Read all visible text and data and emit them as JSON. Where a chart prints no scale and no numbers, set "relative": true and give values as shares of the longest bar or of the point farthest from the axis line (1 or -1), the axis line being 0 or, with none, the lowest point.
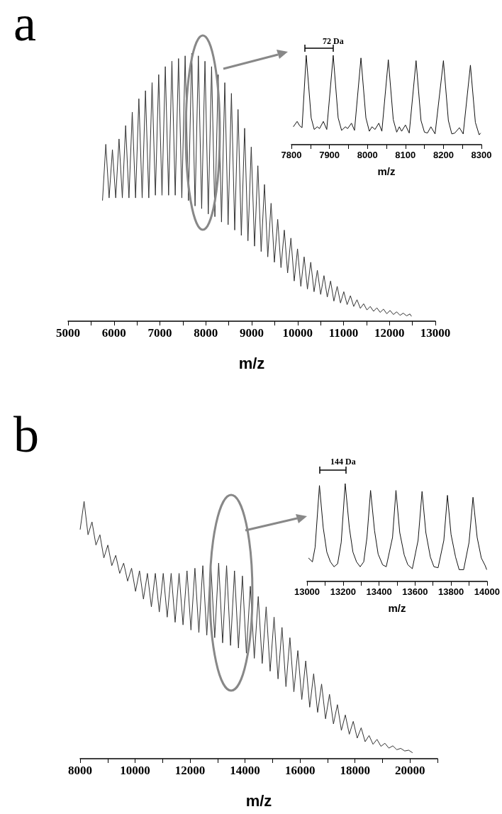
{
  "chart_data": [
    {
      "type": "line",
      "title": "a",
      "xlabel": "m/z",
      "relative": true,
      "marker": "none",
      "xlim": [
        5000,
        13000
      ],
      "xticks": [
        5000,
        {
          "value": 5500,
          "label": null
        },
        6000,
        {
          "value": 6500,
          "label": null
        },
        7000,
        {
          "value": 7500,
          "label": null
        },
        8000,
        {
          "value": 8500,
          "label": null
        },
        9000,
        {
          "value": 9500,
          "label": null
        },
        10000,
        {
          "value": 10500,
          "label": null
        },
        11000,
        {
          "value": 11500,
          "label": null
        },
        12000,
        {
          "value": 12500,
          "label": null
        },
        13000
      ],
      "series": [
        {
          "color": "#333333",
          "x": [
            5750,
            5822,
            5894,
            5966,
            6038,
            6110,
            6182,
            6254,
            6326,
            6398,
            6470,
            6542,
            6614,
            6686,
            6758,
            6830,
            6902,
            6974,
            7046,
            7118,
            7190,
            7262,
            7334,
            7406,
            7478,
            7550,
            7622,
            7694,
            7766,
            7838,
            7910,
            7982,
            8054,
            8126,
            8198,
            8270,
            8342,
            8414,
            8486,
            8558,
            8630,
            8702,
            8774,
            8846,
            8918,
            8990,
            9062,
            9134,
            9206,
            9278,
            9350,
            9422,
            9494,
            9566,
            9638,
            9710,
            9782,
            9854,
            9926,
            9998,
            10070,
            10142,
            10214,
            10286,
            10358,
            10430,
            10502,
            10574,
            10646,
            10718,
            10790,
            10862,
            10934,
            11006,
            11078,
            11150,
            11222,
            11294,
            11366,
            11438,
            11510,
            11582,
            11654,
            11726,
            11798,
            11870,
            11942,
            12014,
            12086,
            12158,
            12230,
            12302,
            12374,
            12446,
            12480
          ],
          "values": [
            0.45,
            0.66,
            0.46,
            0.64,
            0.46,
            0.68,
            0.46,
            0.73,
            0.46,
            0.78,
            0.46,
            0.83,
            0.46,
            0.86,
            0.46,
            0.89,
            0.47,
            0.92,
            0.47,
            0.95,
            0.47,
            0.97,
            0.47,
            0.98,
            0.46,
            0.99,
            0.45,
            1.0,
            0.43,
            0.99,
            0.42,
            0.97,
            0.4,
            0.95,
            0.39,
            0.92,
            0.37,
            0.89,
            0.36,
            0.85,
            0.34,
            0.79,
            0.32,
            0.72,
            0.3,
            0.65,
            0.28,
            0.58,
            0.26,
            0.51,
            0.24,
            0.44,
            0.22,
            0.38,
            0.2,
            0.34,
            0.18,
            0.31,
            0.15,
            0.27,
            0.13,
            0.24,
            0.12,
            0.22,
            0.11,
            0.19,
            0.1,
            0.17,
            0.09,
            0.15,
            0.075,
            0.13,
            0.068,
            0.11,
            0.062,
            0.095,
            0.055,
            0.08,
            0.048,
            0.065,
            0.042,
            0.055,
            0.037,
            0.05,
            0.033,
            0.045,
            0.028,
            0.04,
            0.025,
            0.035,
            0.022,
            0.03,
            0.02,
            0.027,
            0.018
          ]
        }
      ]
    },
    {
      "type": "line",
      "xlabel": "m/z",
      "relative": true,
      "marker": "none",
      "annotations": [
        "72 Da"
      ],
      "xlim": [
        7800,
        8300
      ],
      "xticks": [
        7800,
        {
          "value": 7850,
          "label": null
        },
        7900,
        {
          "value": 7950,
          "label": null
        },
        8000,
        {
          "value": 8050,
          "label": null
        },
        8100,
        {
          "value": 8150,
          "label": null
        },
        8200,
        {
          "value": 8250,
          "label": null
        },
        8300
      ],
      "series": [
        {
          "color": "#111111",
          "x": [
            7805,
            7815,
            7822,
            7828,
            7839,
            7852,
            7860,
            7868,
            7874,
            7884,
            7893,
            7910,
            7923,
            7932,
            7942,
            7948,
            7958,
            7966,
            7983,
            7996,
            8005,
            8012,
            8020,
            8030,
            8038,
            8055,
            8068,
            8077,
            8084,
            8090,
            8100,
            8110,
            8128,
            8141,
            8150,
            8158,
            8167,
            8178,
            8200,
            8213,
            8222,
            8230,
            8242,
            8252,
            8271,
            8284,
            8294,
            8298
          ],
          "values": [
            0.2,
            0.26,
            0.21,
            0.19,
            1.0,
            0.3,
            0.17,
            0.2,
            0.18,
            0.26,
            0.17,
            1.0,
            0.3,
            0.16,
            0.2,
            0.18,
            0.24,
            0.16,
            0.97,
            0.3,
            0.15,
            0.2,
            0.17,
            0.24,
            0.15,
            0.95,
            0.28,
            0.14,
            0.2,
            0.15,
            0.22,
            0.13,
            0.94,
            0.27,
            0.14,
            0.13,
            0.2,
            0.12,
            0.94,
            0.27,
            0.12,
            0.13,
            0.19,
            0.12,
            0.89,
            0.25,
            0.11,
            0.13
          ]
        }
      ]
    },
    {
      "type": "line",
      "title": "b",
      "xlabel": "m/z",
      "relative": true,
      "marker": "none",
      "xlim": [
        8000,
        21000
      ],
      "xticks": [
        8000,
        {
          "value": 9000,
          "label": null
        },
        10000,
        {
          "value": 11000,
          "label": null
        },
        12000,
        {
          "value": 13000,
          "label": null
        },
        14000,
        {
          "value": 15000,
          "label": null
        },
        16000,
        {
          "value": 17000,
          "label": null
        },
        18000,
        {
          "value": 19000,
          "label": null
        },
        20000,
        {
          "value": 21000,
          "label": null
        }
      ],
      "series": [
        {
          "color": "#333333",
          "x": [
            8000,
            8144,
            8288,
            8432,
            8576,
            8720,
            8864,
            9008,
            9152,
            9296,
            9440,
            9584,
            9728,
            9872,
            10016,
            10160,
            10304,
            10448,
            10592,
            10736,
            10880,
            11024,
            11168,
            11312,
            11456,
            11600,
            11744,
            11888,
            12032,
            12176,
            12320,
            12464,
            12608,
            12752,
            12896,
            13040,
            13184,
            13328,
            13472,
            13616,
            13760,
            13904,
            14048,
            14192,
            14336,
            14480,
            14624,
            14768,
            14912,
            15056,
            15200,
            15344,
            15488,
            15632,
            15776,
            15920,
            16064,
            16208,
            16352,
            16496,
            16640,
            16784,
            16928,
            17072,
            17216,
            17360,
            17504,
            17648,
            17792,
            17936,
            18080,
            18224,
            18368,
            18512,
            18656,
            18800,
            18944,
            19088,
            19232,
            19376,
            19520,
            19664,
            19808,
            19952,
            20096
          ],
          "values": [
            0.89,
            1.0,
            0.87,
            0.92,
            0.83,
            0.87,
            0.78,
            0.83,
            0.75,
            0.79,
            0.72,
            0.76,
            0.69,
            0.74,
            0.65,
            0.73,
            0.62,
            0.72,
            0.59,
            0.72,
            0.57,
            0.72,
            0.55,
            0.72,
            0.53,
            0.72,
            0.52,
            0.73,
            0.5,
            0.74,
            0.49,
            0.75,
            0.48,
            0.76,
            0.47,
            0.76,
            0.45,
            0.75,
            0.44,
            0.73,
            0.43,
            0.71,
            0.41,
            0.67,
            0.39,
            0.63,
            0.37,
            0.59,
            0.34,
            0.55,
            0.31,
            0.51,
            0.28,
            0.47,
            0.26,
            0.42,
            0.23,
            0.38,
            0.2,
            0.33,
            0.18,
            0.29,
            0.155,
            0.25,
            0.135,
            0.21,
            0.11,
            0.17,
            0.095,
            0.145,
            0.08,
            0.12,
            0.066,
            0.09,
            0.056,
            0.075,
            0.048,
            0.06,
            0.041,
            0.05,
            0.035,
            0.04,
            0.03,
            0.033,
            0.023
          ]
        }
      ]
    },
    {
      "type": "line",
      "xlabel": "m/z",
      "relative": true,
      "marker": "none",
      "annotations": [
        "144 Da"
      ],
      "xlim": [
        13000,
        14000
      ],
      "xticks": [
        13000,
        {
          "value": 13100,
          "label": null
        },
        13200,
        {
          "value": 13300,
          "label": null
        },
        13400,
        {
          "value": 13500,
          "label": null
        },
        13600,
        {
          "value": 13700,
          "label": null
        },
        13800,
        {
          "value": 13900,
          "label": null
        },
        14000
      ],
      "series": [
        {
          "color": "#111111",
          "x": [
            13008,
            13030,
            13045,
            13069,
            13090,
            13110,
            13130,
            13150,
            13170,
            13190,
            13212,
            13235,
            13255,
            13275,
            13295,
            13315,
            13333,
            13353,
            13375,
            13395,
            13420,
            13440,
            13475,
            13494,
            13515,
            13540,
            13560,
            13585,
            13617,
            13639,
            13660,
            13685,
            13705,
            13728,
            13760,
            13780,
            13800,
            13825,
            13845,
            13870,
            13900,
            13922,
            13945,
            13968,
            13990,
            13998
          ],
          "values": [
            0.24,
            0.2,
            0.35,
            0.98,
            0.55,
            0.3,
            0.2,
            0.15,
            0.18,
            0.4,
            1.0,
            0.55,
            0.3,
            0.2,
            0.15,
            0.2,
            0.45,
            0.93,
            0.52,
            0.28,
            0.17,
            0.15,
            0.45,
            0.93,
            0.5,
            0.27,
            0.17,
            0.13,
            0.42,
            0.92,
            0.5,
            0.25,
            0.15,
            0.14,
            0.42,
            0.88,
            0.48,
            0.25,
            0.12,
            0.12,
            0.4,
            0.86,
            0.45,
            0.24,
            0.16,
            0.12
          ]
        }
      ]
    }
  ]
}
